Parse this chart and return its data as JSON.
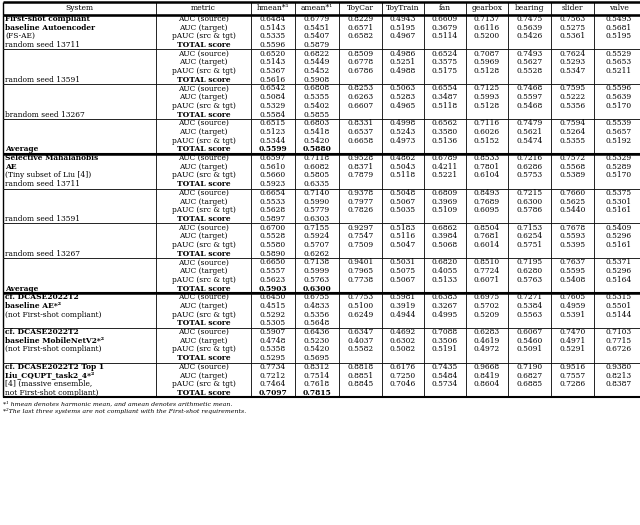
{
  "footnote": "*¹ hmean denotes harmonic mean, and amean denotes arithmetic mean.  *²The last three systems are not compliant with the First-shot requirements.",
  "col_headers": [
    "System",
    "metric",
    "hmean*¹",
    "amean*¹",
    "ToyCar",
    "ToyTrain",
    "fan",
    "gearbox",
    "bearing",
    "slider",
    "valve"
  ],
  "sections": [
    {
      "system_lines": [
        "First-shot compliant",
        "baseline Autoencoder",
        "(FS-AE)",
        "random seed 13711"
      ],
      "sys_bold": [
        true,
        true,
        false,
        false
      ],
      "rows": [
        {
          "metric": "AUC (source)",
          "mb": false,
          "vb": false,
          "vals": [
            "0.6484",
            "0.6779",
            "0.8229",
            "0.4943",
            "0.6609",
            "0.7137",
            "0.7475",
            "0.7563",
            "0.5493"
          ]
        },
        {
          "metric": "AUC (target)",
          "mb": false,
          "vb": false,
          "vals": [
            "0.5143",
            "0.5451",
            "0.6571",
            "0.5195",
            "0.3679",
            "0.6116",
            "0.5639",
            "0.5275",
            "0.5681"
          ]
        },
        {
          "metric": "pAUC (src & tgt)",
          "mb": false,
          "vb": false,
          "vals": [
            "0.5335",
            "0.5407",
            "0.6582",
            "0.4967",
            "0.5114",
            "0.5200",
            "0.5426",
            "0.5361",
            "0.5195"
          ]
        },
        {
          "metric": "TOTAL score",
          "mb": true,
          "vb": false,
          "vals": [
            "0.5596",
            "0.5879",
            "",
            "",
            "",
            "",
            "",
            "",
            ""
          ]
        }
      ],
      "group": 0,
      "thick_top": true
    },
    {
      "system_lines": [
        "",
        "",
        "",
        "random seed 13591"
      ],
      "sys_bold": [
        false,
        false,
        false,
        false
      ],
      "rows": [
        {
          "metric": "AUC (source)",
          "mb": false,
          "vb": false,
          "vals": [
            "0.6520",
            "0.6822",
            "0.8509",
            "0.4986",
            "0.6524",
            "0.7087",
            "0.7493",
            "0.7624",
            "0.5529"
          ]
        },
        {
          "metric": "AUC (target)",
          "mb": false,
          "vb": false,
          "vals": [
            "0.5143",
            "0.5449",
            "0.6778",
            "0.5251",
            "0.3575",
            "0.5969",
            "0.5627",
            "0.5293",
            "0.5653"
          ]
        },
        {
          "metric": "pAUC (src & tgt)",
          "mb": false,
          "vb": false,
          "vals": [
            "0.5367",
            "0.5452",
            "0.6786",
            "0.4988",
            "0.5175",
            "0.5128",
            "0.5528",
            "0.5347",
            "0.5211"
          ]
        },
        {
          "metric": "TOTAL score",
          "mb": true,
          "vb": false,
          "vals": [
            "0.5616",
            "0.5908",
            "",
            "",
            "",
            "",
            "",
            "",
            ""
          ]
        }
      ],
      "group": 0
    },
    {
      "system_lines": [
        "",
        "",
        "",
        "brandom seed 13267"
      ],
      "sys_bold": [
        false,
        false,
        false,
        false
      ],
      "rows": [
        {
          "metric": "AUC (source)",
          "mb": false,
          "vb": false,
          "vals": [
            "0.6542",
            "0.6808",
            "0.8253",
            "0.5063",
            "0.6554",
            "0.7125",
            "0.7468",
            "0.7595",
            "0.5596"
          ]
        },
        {
          "metric": "AUC (target)",
          "mb": false,
          "vb": false,
          "vals": [
            "0.5084",
            "0.5355",
            "0.6263",
            "0.5283",
            "0.3487",
            "0.5993",
            "0.5597",
            "0.5222",
            "0.5639"
          ]
        },
        {
          "metric": "pAUC (src & tgt)",
          "mb": false,
          "vb": false,
          "vals": [
            "0.5329",
            "0.5402",
            "0.6607",
            "0.4965",
            "0.5118",
            "0.5128",
            "0.5468",
            "0.5356",
            "0.5170"
          ]
        },
        {
          "metric": "TOTAL score",
          "mb": true,
          "vb": false,
          "vals": [
            "0.5584",
            "0.5855",
            "",
            "",
            "",
            "",
            "",
            "",
            ""
          ]
        }
      ],
      "group": 0
    },
    {
      "system_lines": [
        "",
        "",
        "",
        "Average"
      ],
      "sys_bold": [
        false,
        false,
        false,
        true
      ],
      "rows": [
        {
          "metric": "AUC (source)",
          "mb": false,
          "vb": false,
          "vals": [
            "0.6515",
            "0.6803",
            "0.8331",
            "0.4998",
            "0.6562",
            "0.7116",
            "0.7479",
            "0.7594",
            "0.5539"
          ]
        },
        {
          "metric": "AUC (target)",
          "mb": false,
          "vb": false,
          "vals": [
            "0.5123",
            "0.5418",
            "0.6537",
            "0.5243",
            "0.3580",
            "0.6026",
            "0.5621",
            "0.5264",
            "0.5657"
          ]
        },
        {
          "metric": "pAUC (src & tgt)",
          "mb": false,
          "vb": false,
          "vals": [
            "0.5344",
            "0.5420",
            "0.6658",
            "0.4973",
            "0.5136",
            "0.5152",
            "0.5474",
            "0.5355",
            "0.5192"
          ]
        },
        {
          "metric": "TOTAL score",
          "mb": true,
          "vb": true,
          "vals": [
            "0.5599",
            "0.5880",
            "",
            "",
            "",
            "",
            "",
            "",
            ""
          ]
        }
      ],
      "group": 0,
      "group_end": true
    },
    {
      "system_lines": [
        "Selective Mahalanobis",
        "AE",
        "(Tiny subset of Liu [4])",
        "random seed 13711"
      ],
      "sys_bold": [
        true,
        true,
        false,
        false
      ],
      "rows": [
        {
          "metric": "AUC (source)",
          "mb": false,
          "vb": false,
          "vals": [
            "0.6597",
            "0.7118",
            "0.9528",
            "0.4862",
            "0.6789",
            "0.8533",
            "0.7216",
            "0.7572",
            "0.5329"
          ]
        },
        {
          "metric": "AUC (target)",
          "mb": false,
          "vb": false,
          "vals": [
            "0.5610",
            "0.6082",
            "0.8371",
            "0.5043",
            "0.4211",
            "0.7801",
            "0.6286",
            "0.5568",
            "0.5289"
          ]
        },
        {
          "metric": "pAUC (src & tgt)",
          "mb": false,
          "vb": false,
          "vals": [
            "0.5660",
            "0.5805",
            "0.7879",
            "0.5118",
            "0.5221",
            "0.6104",
            "0.5753",
            "0.5389",
            "0.5170"
          ]
        },
        {
          "metric": "TOTAL score",
          "mb": true,
          "vb": false,
          "vals": [
            "0.5923",
            "0.6335",
            "",
            "",
            "",
            "",
            "",
            "",
            ""
          ]
        }
      ],
      "group": 1,
      "thick_top": true
    },
    {
      "system_lines": [
        "",
        "",
        "",
        "random seed 13591"
      ],
      "sys_bold": [
        false,
        false,
        false,
        false
      ],
      "rows": [
        {
          "metric": "AUC (source)",
          "mb": false,
          "vb": false,
          "vals": [
            "0.6654",
            "0.7140",
            "0.9378",
            "0.5048",
            "0.6809",
            "0.8493",
            "0.7215",
            "0.7660",
            "0.5375"
          ]
        },
        {
          "metric": "AUC (target)",
          "mb": false,
          "vb": false,
          "vals": [
            "0.5533",
            "0.5990",
            "0.7977",
            "0.5067",
            "0.3969",
            "0.7689",
            "0.6300",
            "0.5625",
            "0.5301"
          ]
        },
        {
          "metric": "pAUC (src & tgt)",
          "mb": false,
          "vb": false,
          "vals": [
            "0.5628",
            "0.5779",
            "0.7826",
            "0.5035",
            "0.5109",
            "0.6095",
            "0.5786",
            "0.5440",
            "0.5161"
          ]
        },
        {
          "metric": "TOTAL score",
          "mb": true,
          "vb": false,
          "vals": [
            "0.5897",
            "0.6303",
            "",
            "",
            "",
            "",
            "",
            "",
            ""
          ]
        }
      ],
      "group": 1
    },
    {
      "system_lines": [
        "",
        "",
        "",
        "random seed 13267"
      ],
      "sys_bold": [
        false,
        false,
        false,
        false
      ],
      "rows": [
        {
          "metric": "AUC (source)",
          "mb": false,
          "vb": false,
          "vals": [
            "0.6700",
            "0.7155",
            "0.9297",
            "0.5183",
            "0.6862",
            "0.8504",
            "0.7153",
            "0.7678",
            "0.5409"
          ]
        },
        {
          "metric": "AUC (target)",
          "mb": false,
          "vb": false,
          "vals": [
            "0.5528",
            "0.5924",
            "0.7547",
            "0.5116",
            "0.3984",
            "0.7681",
            "0.6254",
            "0.5593",
            "0.5296"
          ]
        },
        {
          "metric": "pAUC (src & tgt)",
          "mb": false,
          "vb": false,
          "vals": [
            "0.5580",
            "0.5707",
            "0.7509",
            "0.5047",
            "0.5068",
            "0.6014",
            "0.5751",
            "0.5395",
            "0.5161"
          ]
        },
        {
          "metric": "TOTAL score",
          "mb": true,
          "vb": false,
          "vals": [
            "0.5890",
            "0.6262",
            "",
            "",
            "",
            "",
            "",
            "",
            ""
          ]
        }
      ],
      "group": 1
    },
    {
      "system_lines": [
        "",
        "",
        "",
        "Average"
      ],
      "sys_bold": [
        false,
        false,
        false,
        true
      ],
      "rows": [
        {
          "metric": "AUC (source)",
          "mb": false,
          "vb": false,
          "vals": [
            "0.6650",
            "0.7138",
            "0.9401",
            "0.5031",
            "0.6820",
            "0.8510",
            "0.7195",
            "0.7637",
            "0.5371"
          ]
        },
        {
          "metric": "AUC (target)",
          "mb": false,
          "vb": false,
          "vals": [
            "0.5557",
            "0.5999",
            "0.7965",
            "0.5075",
            "0.4055",
            "0.7724",
            "0.6280",
            "0.5595",
            "0.5296"
          ]
        },
        {
          "metric": "pAUC (src & tgt)",
          "mb": false,
          "vb": false,
          "vals": [
            "0.5623",
            "0.5763",
            "0.7738",
            "0.5067",
            "0.5133",
            "0.6071",
            "0.5763",
            "0.5408",
            "0.5164"
          ]
        },
        {
          "metric": "TOTAL score",
          "mb": true,
          "vb": true,
          "vals": [
            "0.5903",
            "0.6300",
            "",
            "",
            "",
            "",
            "",
            "",
            ""
          ]
        }
      ],
      "group": 1,
      "group_end": true
    },
    {
      "system_lines": [
        "cf. DCASE2022T2",
        "baseline AE*²",
        "(not First-shot compliant)",
        ""
      ],
      "sys_bold": [
        true,
        true,
        false,
        false
      ],
      "rows": [
        {
          "metric": "AUC (source)",
          "mb": false,
          "vb": false,
          "vals": [
            "0.6450",
            "0.6755",
            "0.7753",
            "0.5981",
            "0.6383",
            "0.6975",
            "0.7271",
            "0.7605",
            "0.5315"
          ]
        },
        {
          "metric": "AUC (target)",
          "mb": false,
          "vb": false,
          "vals": [
            "0.4515",
            "0.4833",
            "0.5100",
            "0.3919",
            "0.3267",
            "0.5702",
            "0.5384",
            "0.4959",
            "0.5501"
          ]
        },
        {
          "metric": "pAUC (src & tgt)",
          "mb": false,
          "vb": false,
          "vals": [
            "0.5292",
            "0.5356",
            "0.6249",
            "0.4944",
            "0.4995",
            "0.5209",
            "0.5563",
            "0.5391",
            "0.5144"
          ]
        },
        {
          "metric": "TOTAL score",
          "mb": true,
          "vb": false,
          "vals": [
            "0.5305",
            "0.5648",
            "",
            "",
            "",
            "",
            "",
            "",
            ""
          ]
        }
      ],
      "group": 2,
      "thick_top": true
    },
    {
      "system_lines": [
        "cf. DCASE2022T2",
        "baseline MobileNetV2*²",
        "(not First-shot compliant)",
        ""
      ],
      "sys_bold": [
        true,
        true,
        false,
        false
      ],
      "rows": [
        {
          "metric": "AUC (source)",
          "mb": false,
          "vb": false,
          "vals": [
            "0.5907",
            "0.6436",
            "0.6347",
            "0.4692",
            "0.7088",
            "0.6283",
            "0.6067",
            "0.7470",
            "0.7103"
          ]
        },
        {
          "metric": "AUC (target)",
          "mb": false,
          "vb": false,
          "vals": [
            "0.4748",
            "0.5230",
            "0.4037",
            "0.6302",
            "0.3506",
            "0.4619",
            "0.5460",
            "0.4971",
            "0.7715"
          ]
        },
        {
          "metric": "pAUC (src & tgt)",
          "mb": false,
          "vb": false,
          "vals": [
            "0.5358",
            "0.5420",
            "0.5582",
            "0.5082",
            "0.5191",
            "0.4972",
            "0.5091",
            "0.5291",
            "0.6726"
          ]
        },
        {
          "metric": "TOTAL score",
          "mb": true,
          "vb": false,
          "vals": [
            "0.5295",
            "0.5695",
            "",
            "",
            "",
            "",
            "",
            "",
            ""
          ]
        }
      ],
      "group": 2
    },
    {
      "system_lines": [
        "cf. DCASE2022T2 Top 1",
        "Liu_CQUPT_task2_4*²",
        "[4] (massive ensemble,",
        "not First-shot compliant)"
      ],
      "sys_bold": [
        true,
        true,
        false,
        false
      ],
      "rows": [
        {
          "metric": "AUC (source)",
          "mb": false,
          "vb": false,
          "vals": [
            "0.7734",
            "0.8312",
            "0.8818",
            "0.6176",
            "0.7435",
            "0.9668",
            "0.7190",
            "0.9516",
            "0.9380"
          ]
        },
        {
          "metric": "AUC (target)",
          "mb": false,
          "vb": false,
          "vals": [
            "0.7212",
            "0.7514",
            "0.8851",
            "0.7250",
            "0.5484",
            "0.8419",
            "0.6827",
            "0.7557",
            "0.8213"
          ]
        },
        {
          "metric": "pAUC (src & tgt)",
          "mb": false,
          "vb": false,
          "vals": [
            "0.7464",
            "0.7618",
            "0.8845",
            "0.7046",
            "0.5734",
            "0.8604",
            "0.6885",
            "0.7286",
            "0.8387"
          ]
        },
        {
          "metric": "TOTAL score",
          "mb": true,
          "vb": true,
          "vals": [
            "0.7097",
            "0.7815",
            "",
            "",
            "",
            "",
            "",
            "",
            ""
          ]
        }
      ],
      "group": 2,
      "group_end": true
    }
  ]
}
